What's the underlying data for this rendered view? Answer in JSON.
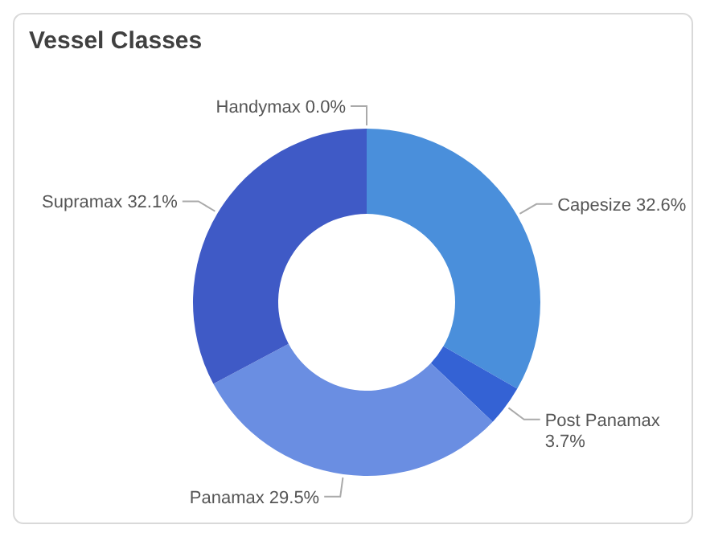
{
  "chart_data": {
    "type": "donut",
    "title": "Vessel Classes",
    "categories": [
      "Capesize",
      "Post Panamax",
      "Panamax",
      "Supramax",
      "Handymax"
    ],
    "values": [
      32.6,
      3.7,
      29.5,
      32.1,
      0.0
    ],
    "value_labels": [
      "32.6%",
      "3.7%",
      "29.5%",
      "32.1%",
      "0.0%"
    ],
    "colors": [
      "#4a8fdb",
      "#3462d4",
      "#6a8ee2",
      "#3f5ac6",
      "#1c3cb8"
    ]
  }
}
